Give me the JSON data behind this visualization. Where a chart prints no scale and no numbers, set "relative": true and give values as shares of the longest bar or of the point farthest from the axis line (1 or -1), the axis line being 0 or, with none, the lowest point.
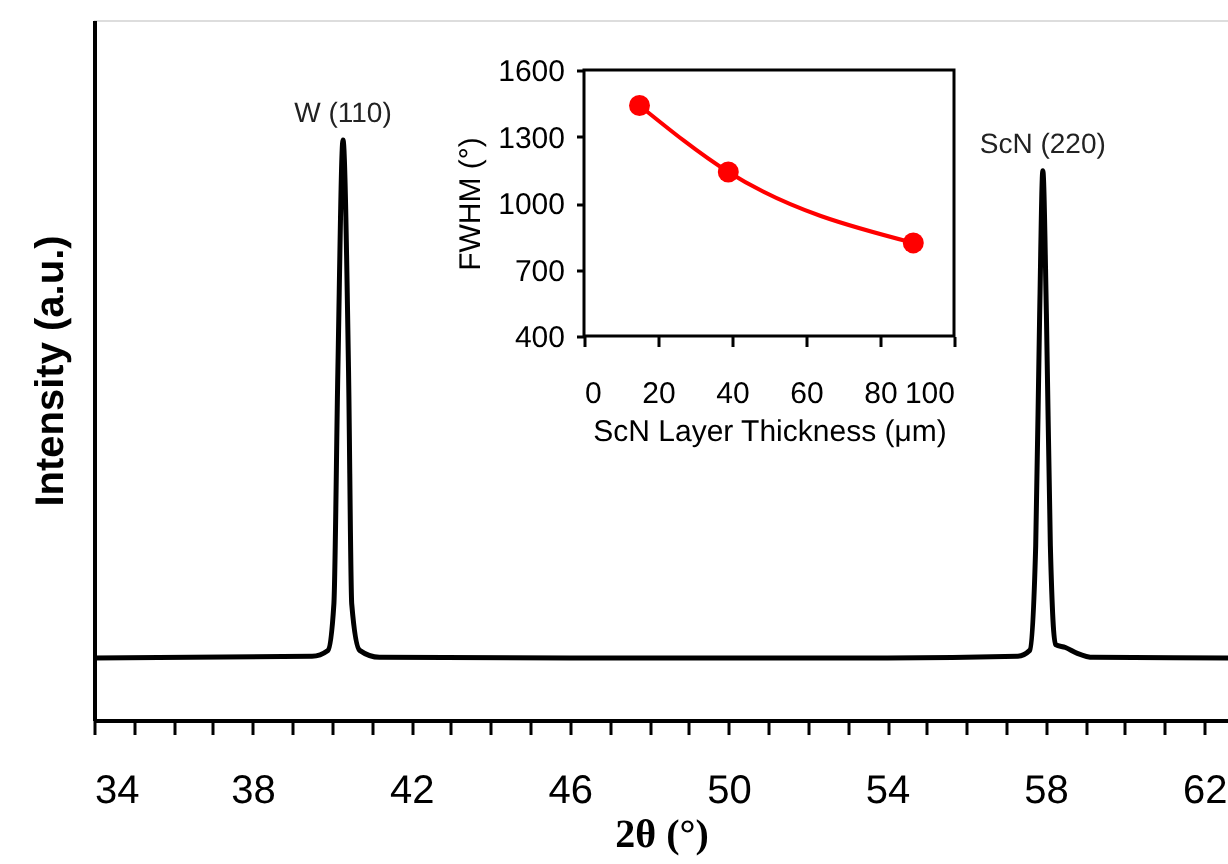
{
  "chart_data": [
    {
      "type": "line",
      "relative": true,
      "xlabel": "2θ (°)",
      "ylabel": "Intensity  (a.u.)",
      "color": "#000000",
      "x": [
        34,
        39.5,
        39.9,
        40.05,
        40.15,
        40.28,
        40.42,
        40.5,
        40.7,
        41.2,
        46,
        54,
        57.3,
        57.6,
        57.75,
        57.85,
        57.93,
        58.02,
        58.12,
        58.25,
        58.5,
        58.8,
        59.2,
        62.6
      ],
      "values": [
        0.107,
        0.11,
        0.12,
        0.2,
        0.6,
        1.0,
        0.6,
        0.2,
        0.12,
        0.108,
        0.107,
        0.107,
        0.11,
        0.12,
        0.3,
        0.7,
        0.947,
        0.7,
        0.3,
        0.13,
        0.125,
        0.115,
        0.108,
        0.107
      ],
      "xlim": [
        34,
        62.6
      ],
      "xticks": [
        34,
        {
          "value": 35,
          "label": null
        },
        {
          "value": 36,
          "label": null
        },
        {
          "value": 37,
          "label": null
        },
        38,
        {
          "value": 39,
          "label": null
        },
        {
          "value": 40,
          "label": null
        },
        {
          "value": 41,
          "label": null
        },
        42,
        {
          "value": 43,
          "label": null
        },
        {
          "value": 44,
          "label": null
        },
        {
          "value": 45,
          "label": null
        },
        46,
        {
          "value": 47,
          "label": null
        },
        {
          "value": 48,
          "label": null
        },
        {
          "value": 49,
          "label": null
        },
        50,
        {
          "value": 51,
          "label": null
        },
        {
          "value": 52,
          "label": null
        },
        {
          "value": 53,
          "label": null
        },
        54,
        {
          "value": 55,
          "label": null
        },
        {
          "value": 56,
          "label": null
        },
        {
          "value": 57,
          "label": null
        },
        58,
        {
          "value": 59,
          "label": null
        },
        {
          "value": 60,
          "label": null
        },
        {
          "value": 61,
          "label": null
        },
        62
      ],
      "annotations": [
        {
          "text": "W (110)",
          "x": 40.28,
          "y": 1.0
        },
        {
          "text": "ScN (220)",
          "x": 57.93,
          "y": 0.947
        }
      ],
      "grid": false,
      "marker": "none",
      "line_style": "solid"
    },
    {
      "type": "line",
      "xlabel": "ScN Layer Thickness  (μm)",
      "ylabel": "FWHM (°)",
      "color": "#ff0000",
      "x": [
        15,
        39,
        89
      ],
      "values": [
        1440,
        1140,
        820
      ],
      "xlim": [
        0,
        100
      ],
      "xticks": [
        0,
        20,
        40,
        60,
        80,
        100
      ],
      "ylim": [
        400,
        1600
      ],
      "yticks": [
        400,
        700,
        1000,
        1300,
        1600
      ],
      "grid": false,
      "marker": "circle",
      "line_style": "solid"
    }
  ]
}
